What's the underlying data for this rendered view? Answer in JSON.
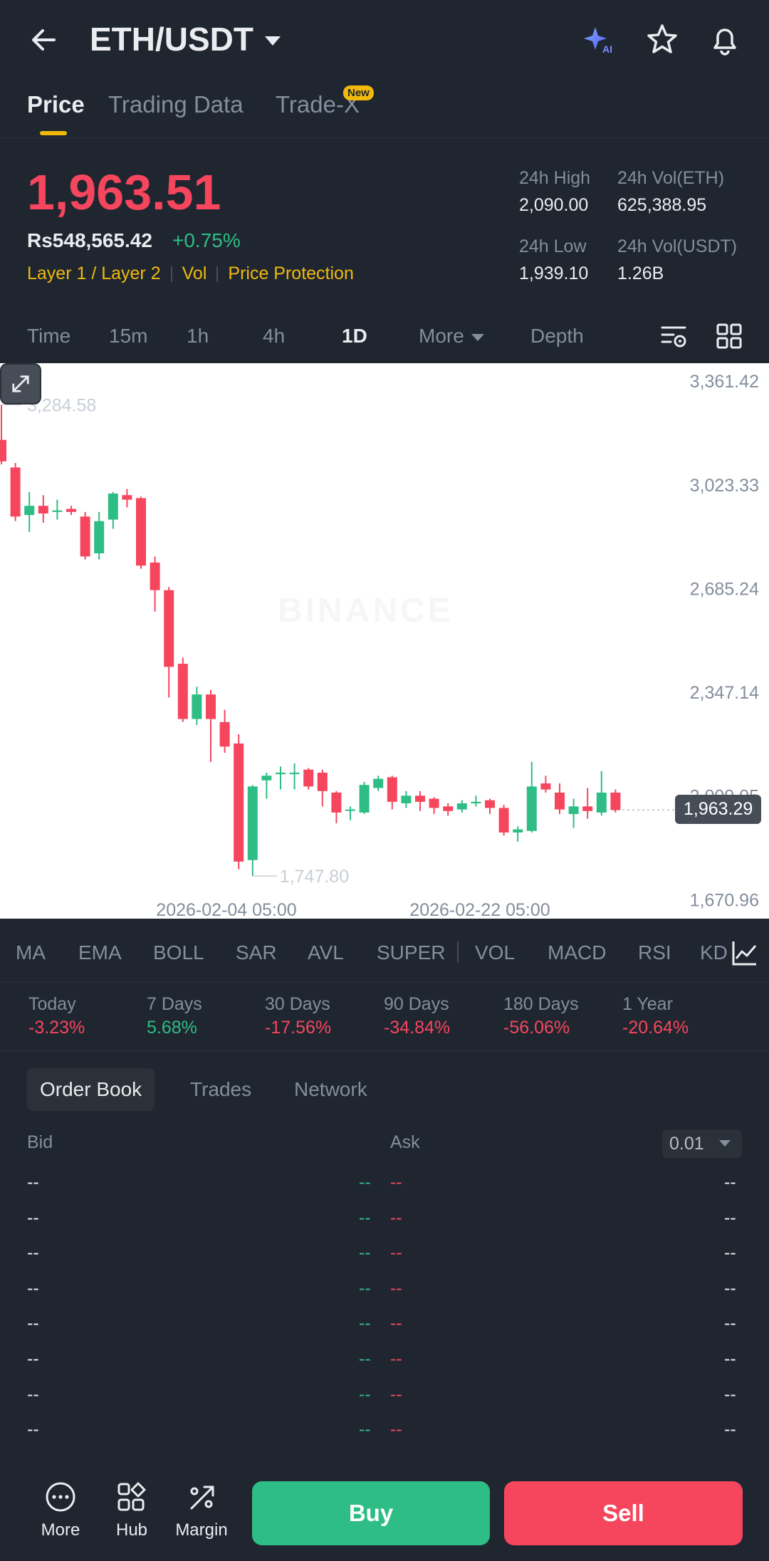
{
  "header": {
    "pair": "ETH/USDT",
    "icons": [
      "back-arrow-icon",
      "ai-sparkle-icon",
      "star-icon",
      "bell-icon"
    ]
  },
  "tabs": [
    {
      "label": "Price",
      "active": true
    },
    {
      "label": "Trading Data",
      "active": false
    },
    {
      "label": "Trade-X",
      "active": false
    }
  ],
  "new_badge": "New",
  "price": {
    "last": "1,963.51",
    "inr": "Rs548,565.42",
    "change": "+0.75%",
    "tags": [
      "Layer 1 / Layer 2",
      "Vol",
      "Price Protection"
    ],
    "stats": {
      "high_label": "24h High",
      "high_value": "2,090.00",
      "vol_eth_label": "24h Vol(ETH)",
      "vol_eth_value": "625,388.95",
      "low_label": "24h Low",
      "low_value": "1,939.10",
      "vol_usdt_label": "24h Vol(USDT)",
      "vol_usdt_value": "1.26B"
    }
  },
  "timeframes": [
    "Time",
    "15m",
    "1h",
    "4h",
    "1D",
    "More",
    "Depth"
  ],
  "active_timeframe": "1D",
  "chart_data": {
    "type": "candlestick",
    "y_ticks": [
      "3,361.42",
      "3,023.33",
      "2,685.24",
      "2,347.14",
      "2,009.05",
      "1,670.96"
    ],
    "ylim": [
      1609,
      3420
    ],
    "x_ticks": [
      "2026-02-04 05:00",
      "2026-02-22 05:00"
    ],
    "max_label": "3,284.58",
    "min_label": "1,747.80",
    "current_price_label": "1,963.29",
    "current_price": 1963.29,
    "candles": [
      {
        "o": 3170,
        "h": 3284.58,
        "l": 3090,
        "c": 3100
      },
      {
        "o": 3080,
        "h": 3095,
        "l": 2905,
        "c": 2920
      },
      {
        "o": 2925,
        "h": 3000,
        "l": 2870,
        "c": 2955
      },
      {
        "o": 2955,
        "h": 2990,
        "l": 2900,
        "c": 2930
      },
      {
        "o": 2935,
        "h": 2975,
        "l": 2910,
        "c": 2940
      },
      {
        "o": 2945,
        "h": 2955,
        "l": 2925,
        "c": 2935
      },
      {
        "o": 2920,
        "h": 2935,
        "l": 2780,
        "c": 2790
      },
      {
        "o": 2800,
        "h": 2935,
        "l": 2780,
        "c": 2905
      },
      {
        "o": 2910,
        "h": 3000,
        "l": 2880,
        "c": 2995
      },
      {
        "o": 2990,
        "h": 3010,
        "l": 2950,
        "c": 2975
      },
      {
        "o": 2980,
        "h": 2985,
        "l": 2750,
        "c": 2760
      },
      {
        "o": 2770,
        "h": 2790,
        "l": 2610,
        "c": 2680
      },
      {
        "o": 2680,
        "h": 2690,
        "l": 2330,
        "c": 2430
      },
      {
        "o": 2440,
        "h": 2460,
        "l": 2250,
        "c": 2260
      },
      {
        "o": 2260,
        "h": 2365,
        "l": 2240,
        "c": 2340
      },
      {
        "o": 2340,
        "h": 2355,
        "l": 2120,
        "c": 2260
      },
      {
        "o": 2250,
        "h": 2290,
        "l": 2150,
        "c": 2170
      },
      {
        "o": 2180,
        "h": 2210,
        "l": 1770,
        "c": 1795
      },
      {
        "o": 1800,
        "h": 2045,
        "l": 1747.8,
        "c": 2040
      },
      {
        "o": 2060,
        "h": 2085,
        "l": 2000,
        "c": 2075
      },
      {
        "o": 2080,
        "h": 2105,
        "l": 2030,
        "c": 2085
      },
      {
        "o": 2080,
        "h": 2115,
        "l": 2030,
        "c": 2085
      },
      {
        "o": 2095,
        "h": 2100,
        "l": 2030,
        "c": 2040
      },
      {
        "o": 2085,
        "h": 2095,
        "l": 1975,
        "c": 2025
      },
      {
        "o": 2020,
        "h": 2025,
        "l": 1920,
        "c": 1955
      },
      {
        "o": 1965,
        "h": 1975,
        "l": 1930,
        "c": 1965
      },
      {
        "o": 1955,
        "h": 2055,
        "l": 1950,
        "c": 2045
      },
      {
        "o": 2035,
        "h": 2075,
        "l": 2025,
        "c": 2065
      },
      {
        "o": 2070,
        "h": 2075,
        "l": 1965,
        "c": 1990
      },
      {
        "o": 1985,
        "h": 2025,
        "l": 1970,
        "c": 2010
      },
      {
        "o": 2010,
        "h": 2025,
        "l": 1960,
        "c": 1990
      },
      {
        "o": 2000,
        "h": 2005,
        "l": 1950,
        "c": 1970
      },
      {
        "o": 1975,
        "h": 1985,
        "l": 1945,
        "c": 1960
      },
      {
        "o": 1965,
        "h": 1995,
        "l": 1955,
        "c": 1985
      },
      {
        "o": 1985,
        "h": 2010,
        "l": 1975,
        "c": 1990
      },
      {
        "o": 1995,
        "h": 2000,
        "l": 1950,
        "c": 1970
      },
      {
        "o": 1970,
        "h": 1980,
        "l": 1880,
        "c": 1890
      },
      {
        "o": 1890,
        "h": 1910,
        "l": 1860,
        "c": 1900
      },
      {
        "o": 1895,
        "h": 2120,
        "l": 1890,
        "c": 2040
      },
      {
        "o": 2050,
        "h": 2075,
        "l": 2020,
        "c": 2030
      },
      {
        "o": 2020,
        "h": 2050,
        "l": 1950,
        "c": 1965
      },
      {
        "o": 1950,
        "h": 2000,
        "l": 1905,
        "c": 1975
      },
      {
        "o": 1975,
        "h": 2035,
        "l": 1935,
        "c": 1960
      },
      {
        "o": 1955,
        "h": 2090,
        "l": 1945,
        "c": 2020
      },
      {
        "o": 2020,
        "h": 2030,
        "l": 1955,
        "c": 1963.29
      }
    ]
  },
  "indicators": [
    "MA",
    "EMA",
    "BOLL",
    "SAR",
    "AVL",
    "SUPER",
    "VOL",
    "MACD",
    "RSI",
    "KD"
  ],
  "performance": [
    {
      "label": "Today",
      "value": "-3.23%",
      "positive": false
    },
    {
      "label": "7 Days",
      "value": "5.68%",
      "positive": true
    },
    {
      "label": "30 Days",
      "value": "-17.56%",
      "positive": false
    },
    {
      "label": "90 Days",
      "value": "-34.84%",
      "positive": false
    },
    {
      "label": "180 Days",
      "value": "-56.06%",
      "positive": false
    },
    {
      "label": "1 Year",
      "value": "-20.64%",
      "positive": false
    }
  ],
  "order_book": {
    "tabs": [
      "Order Book",
      "Trades",
      "Network"
    ],
    "bid_label": "Bid",
    "ask_label": "Ask",
    "step": "0.01",
    "placeholder": "--",
    "row_count": 8
  },
  "bottom": {
    "more": "More",
    "hub": "Hub",
    "margin": "Margin",
    "buy": "Buy",
    "sell": "Sell"
  },
  "colors": {
    "up": "#2ebd85",
    "down": "#f6465d",
    "accent": "#f0b90b",
    "bg": "#1f2630"
  }
}
